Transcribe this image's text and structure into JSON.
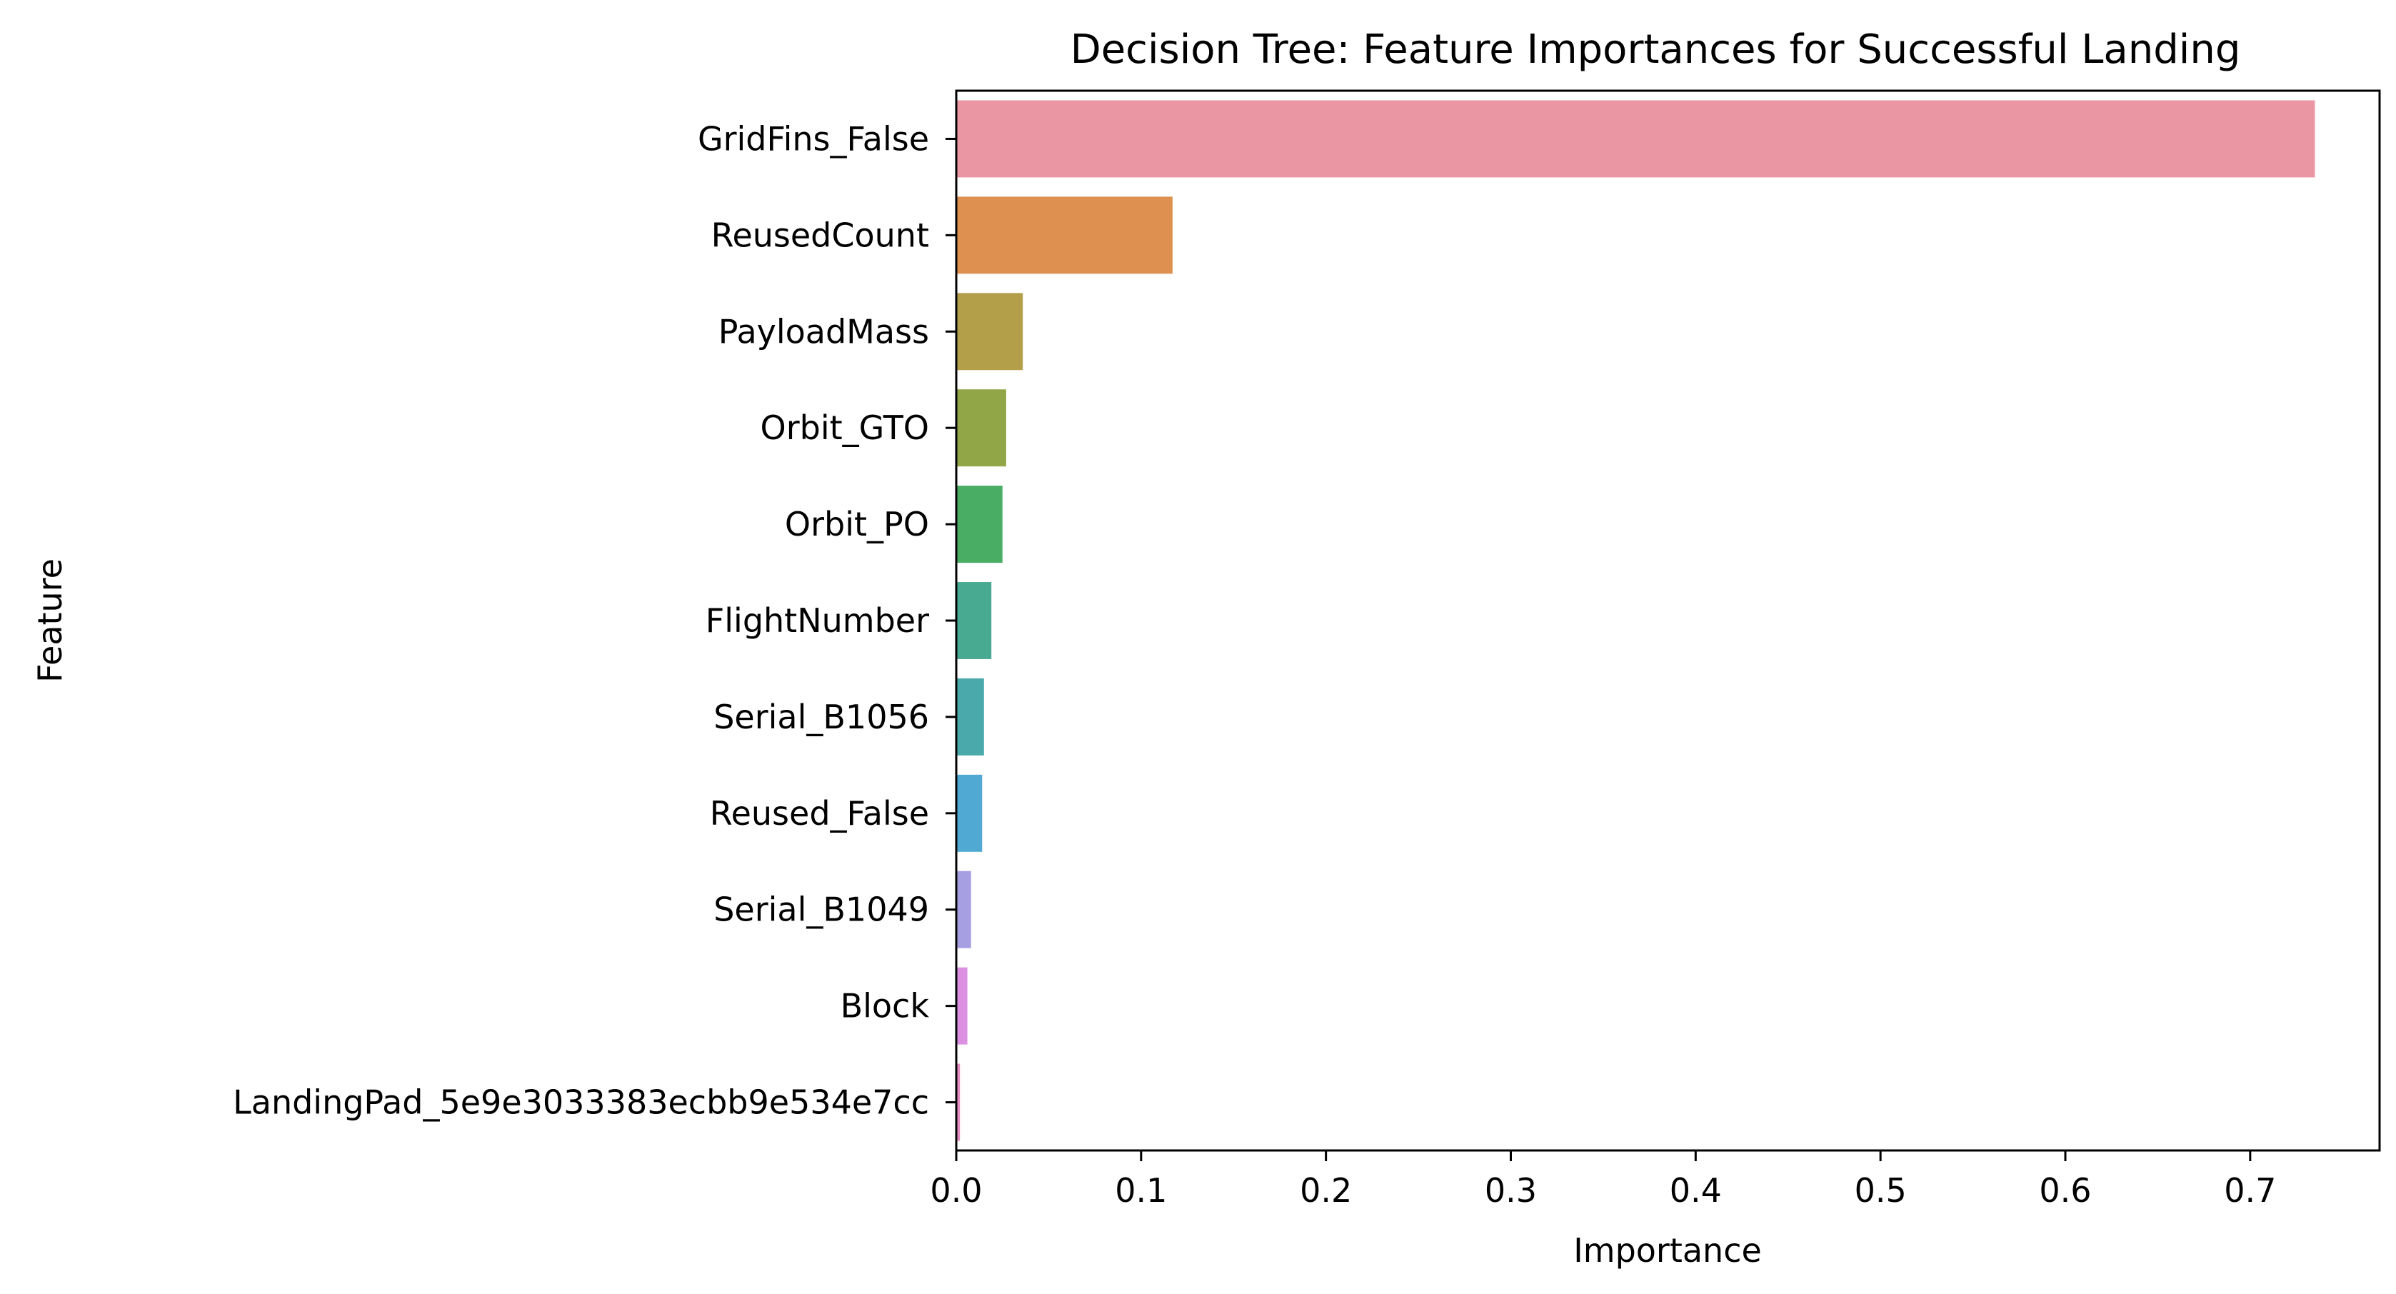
{
  "chart_data": {
    "type": "bar",
    "orientation": "horizontal",
    "title": "Decision Tree: Feature Importances for Successful Landing",
    "xlabel": "Importance",
    "ylabel": "Feature",
    "xlim": [
      0,
      0.77
    ],
    "xticks": [
      0.0,
      0.1,
      0.2,
      0.3,
      0.4,
      0.5,
      0.6,
      0.7
    ],
    "xtick_labels": [
      "0.0",
      "0.1",
      "0.2",
      "0.3",
      "0.4",
      "0.5",
      "0.6",
      "0.7"
    ],
    "grid": false,
    "categories": [
      "GridFins_False",
      "ReusedCount",
      "PayloadMass",
      "Orbit_GTO",
      "Orbit_PO",
      "FlightNumber",
      "Serial_B1056",
      "Reused_False",
      "Serial_B1049",
      "Block",
      "LandingPad_5e9e3033383ecbb9e534e7cc"
    ],
    "values": [
      0.735,
      0.117,
      0.036,
      0.027,
      0.025,
      0.019,
      0.015,
      0.014,
      0.008,
      0.006,
      0.002
    ],
    "colors": [
      "#eb96a3",
      "#dd904f",
      "#b39f4a",
      "#91a647",
      "#49ad64",
      "#49aa92",
      "#4aa9ab",
      "#50a9d2",
      "#a6a0e2",
      "#db90e2",
      "#e68cc1"
    ]
  }
}
